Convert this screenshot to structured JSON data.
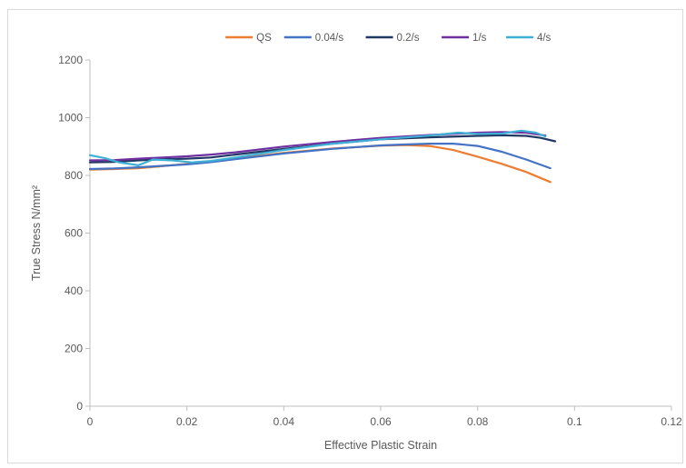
{
  "chart_data": {
    "type": "line",
    "title": "",
    "xlabel": "Effective Plastic Strain",
    "ylabel": "True Stress N/mm²",
    "xlim": [
      0,
      0.12
    ],
    "ylim": [
      0,
      1200
    ],
    "x_ticks": [
      "0",
      "0.02",
      "0.04",
      "0.06",
      "0.08",
      "0.1",
      "0.12"
    ],
    "y_ticks": [
      "0",
      "200",
      "400",
      "600",
      "800",
      "1000",
      "1200"
    ],
    "grid": false,
    "legend_position": "top",
    "series": [
      {
        "name": "QS",
        "color": "#ED7D31",
        "x": [
          0,
          0.005,
          0.01,
          0.015,
          0.02,
          0.025,
          0.03,
          0.04,
          0.05,
          0.06,
          0.065,
          0.07,
          0.075,
          0.08,
          0.085,
          0.09,
          0.095
        ],
        "y": [
          820,
          822,
          825,
          832,
          840,
          848,
          858,
          878,
          893,
          903,
          905,
          902,
          888,
          865,
          840,
          812,
          777
        ]
      },
      {
        "name": "0.04/s",
        "color": "#4472C4",
        "x": [
          0,
          0.005,
          0.01,
          0.015,
          0.02,
          0.025,
          0.03,
          0.04,
          0.05,
          0.06,
          0.065,
          0.07,
          0.075,
          0.08,
          0.085,
          0.09,
          0.095
        ],
        "y": [
          822,
          824,
          828,
          833,
          838,
          846,
          856,
          876,
          892,
          904,
          907,
          910,
          910,
          902,
          882,
          855,
          825
        ]
      },
      {
        "name": "0.2/s",
        "color": "#203864",
        "x": [
          0,
          0.005,
          0.01,
          0.015,
          0.02,
          0.025,
          0.03,
          0.04,
          0.05,
          0.06,
          0.07,
          0.08,
          0.085,
          0.09,
          0.093,
          0.096
        ],
        "y": [
          845,
          847,
          852,
          856,
          858,
          862,
          872,
          892,
          910,
          925,
          932,
          937,
          939,
          937,
          930,
          918
        ]
      },
      {
        "name": "1/s",
        "color": "#7030A0",
        "x": [
          0,
          0.005,
          0.01,
          0.015,
          0.02,
          0.025,
          0.03,
          0.04,
          0.05,
          0.06,
          0.07,
          0.08,
          0.085,
          0.09,
          0.094
        ],
        "y": [
          852,
          853,
          858,
          862,
          866,
          872,
          880,
          900,
          916,
          930,
          940,
          948,
          950,
          948,
          938
        ]
      },
      {
        "name": "4/s",
        "color": "#3EB0D5",
        "x": [
          0,
          0.003,
          0.006,
          0.01,
          0.013,
          0.017,
          0.021,
          0.025,
          0.03,
          0.04,
          0.05,
          0.06,
          0.07,
          0.076,
          0.08,
          0.085,
          0.089,
          0.092,
          0.094
        ],
        "y": [
          870,
          860,
          845,
          835,
          855,
          852,
          845,
          850,
          862,
          888,
          910,
          925,
          938,
          948,
          944,
          945,
          955,
          948,
          935
        ]
      }
    ]
  }
}
